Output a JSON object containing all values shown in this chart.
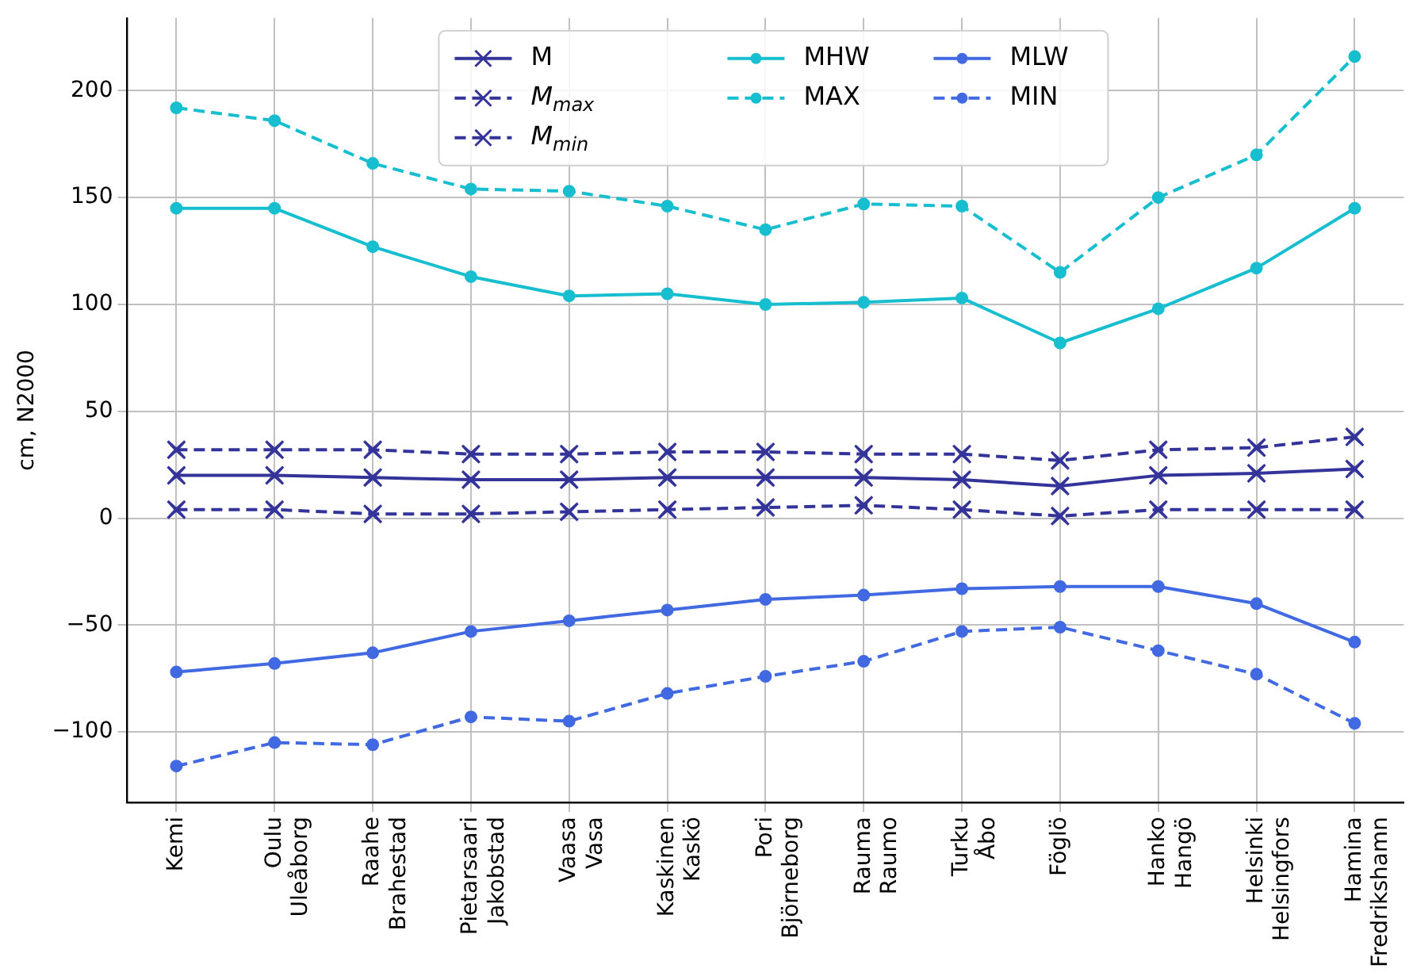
{
  "chart_data": {
    "type": "line",
    "ylabel": "cm, N2000",
    "categories": [
      "Kemi",
      "Oulu\nUleåborg",
      "Raahe\nBrahestad",
      "Pietarsaari\nJakobstad",
      "Vaasa\nVasa",
      "Kaskinen\nKaskö",
      "Pori\nBjörneborg",
      "Rauma\nRaumo",
      "Turku\nÅbo",
      "Föglö",
      "Hanko\nHangö",
      "Helsinki\nHelsingfors",
      "Hamina\nFredrikshamn"
    ],
    "series": [
      {
        "name": "M",
        "color": "#333399",
        "marker": "cross",
        "line_style": "solid",
        "values": [
          20,
          20,
          19,
          18,
          18,
          19,
          19,
          19,
          18,
          15,
          20,
          21,
          23
        ]
      },
      {
        "name": "M$_{max}$",
        "color": "#333399",
        "marker": "cross",
        "line_style": "dashed",
        "values": [
          32,
          32,
          32,
          30,
          30,
          31,
          31,
          30,
          30,
          27,
          32,
          33,
          38
        ]
      },
      {
        "name": "M$_{min}$",
        "color": "#333399",
        "marker": "cross",
        "line_style": "dashed",
        "values": [
          4,
          4,
          2,
          2,
          3,
          4,
          5,
          6,
          4,
          1,
          4,
          4,
          4
        ]
      },
      {
        "name": "MHW",
        "color": "#17becf",
        "marker": "circle",
        "line_style": "solid",
        "values": [
          145,
          145,
          127,
          113,
          104,
          105,
          100,
          101,
          103,
          82,
          98,
          117,
          145
        ]
      },
      {
        "name": "MAX",
        "color": "#17becf",
        "marker": "circle",
        "line_style": "dashed",
        "values": [
          192,
          186,
          166,
          154,
          153,
          146,
          135,
          147,
          146,
          115,
          150,
          170,
          216
        ]
      },
      {
        "name": "MLW",
        "color": "#4169e1",
        "marker": "circle",
        "line_style": "solid",
        "values": [
          -72,
          -68,
          -63,
          -53,
          -48,
          -43,
          -38,
          -36,
          -33,
          -32,
          -32,
          -40,
          -58
        ]
      },
      {
        "name": "MIN",
        "color": "#4169e1",
        "marker": "circle",
        "line_style": "dashed",
        "values": [
          -116,
          -105,
          -106,
          -93,
          -95,
          -82,
          -74,
          -67,
          -53,
          -51,
          -62,
          -73,
          -96
        ]
      }
    ],
    "ylim": [
      -133,
      234
    ],
    "yticks": [
      -100,
      -50,
      0,
      50,
      100,
      150,
      200
    ],
    "grid": true,
    "legend": "top"
  }
}
